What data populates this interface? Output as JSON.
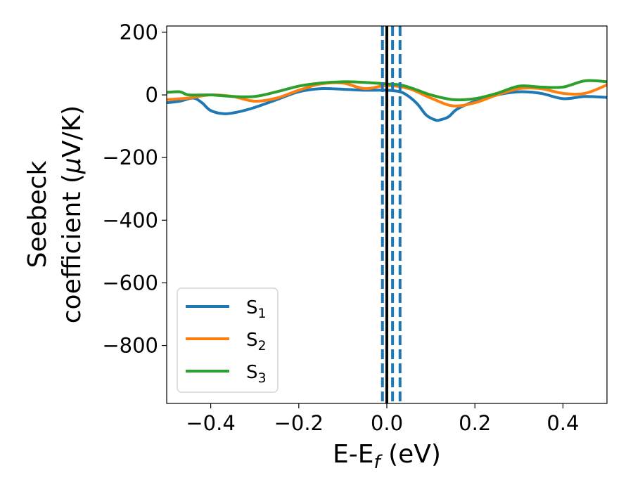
{
  "chart_data": {
    "type": "line",
    "xlabel": "E-E",
    "xlabel_sub": "f",
    "xlabel_unit": " (eV)",
    "ylabel_line1": "Seebeck",
    "ylabel_line2": "coefficient  (",
    "ylabel_mu": "μ",
    "ylabel_unit": "V/K)",
    "xlim": [
      -0.5,
      0.5
    ],
    "ylim": [
      -985,
      220
    ],
    "xticks": [
      -0.4,
      -0.2,
      0.0,
      0.2,
      0.4
    ],
    "xtick_labels": [
      "−0.4",
      "−0.2",
      "0.0",
      "0.2",
      "0.4"
    ],
    "yticks": [
      200,
      0,
      -200,
      -400,
      -600,
      -800
    ],
    "ytick_labels": [
      "200",
      "0",
      "−200",
      "−400",
      "−600",
      "−800"
    ],
    "grid": false,
    "legend_position": "lower-left",
    "vlines": [
      {
        "x": -0.01,
        "style": "dashed",
        "color": "#1f77b4"
      },
      {
        "x": 0.0,
        "style": "solid",
        "color": "#000000"
      },
      {
        "x": 0.013,
        "style": "dashed",
        "color": "#1f77b4"
      },
      {
        "x": 0.03,
        "style": "dashed",
        "color": "#1f77b4"
      }
    ],
    "series": [
      {
        "name": "S",
        "name_sub": "1",
        "color": "#1f77b4",
        "x": [
          -0.5,
          -0.47,
          -0.44,
          -0.42,
          -0.4,
          -0.37,
          -0.34,
          -0.3,
          -0.25,
          -0.2,
          -0.15,
          -0.1,
          -0.05,
          0.0,
          0.03,
          0.05,
          0.07,
          0.09,
          0.11,
          0.12,
          0.14,
          0.16,
          0.2,
          0.25,
          0.3,
          0.35,
          0.4,
          0.45,
          0.5
        ],
        "y": [
          -25,
          -20,
          -10,
          -25,
          -50,
          -60,
          -55,
          -40,
          -15,
          10,
          20,
          18,
          15,
          15,
          10,
          -5,
          -30,
          -65,
          -80,
          -80,
          -70,
          -45,
          -20,
          0,
          10,
          5,
          -12,
          -5,
          -8
        ]
      },
      {
        "name": "S",
        "name_sub": "2",
        "color": "#ff7f0e",
        "x": [
          -0.5,
          -0.45,
          -0.4,
          -0.35,
          -0.3,
          -0.25,
          -0.2,
          -0.15,
          -0.1,
          -0.05,
          0.0,
          0.05,
          0.1,
          0.15,
          0.2,
          0.25,
          0.3,
          0.35,
          0.4,
          0.45,
          0.5
        ],
        "y": [
          -15,
          -10,
          0,
          -5,
          -20,
          -10,
          15,
          35,
          38,
          20,
          30,
          20,
          -10,
          -35,
          -25,
          0,
          20,
          20,
          5,
          5,
          32
        ]
      },
      {
        "name": "S",
        "name_sub": "3",
        "color": "#2ca02c",
        "x": [
          -0.5,
          -0.47,
          -0.45,
          -0.4,
          -0.35,
          -0.3,
          -0.25,
          -0.2,
          -0.15,
          -0.1,
          -0.05,
          0.0,
          0.03,
          0.06,
          0.1,
          0.15,
          0.2,
          0.25,
          0.3,
          0.35,
          0.4,
          0.45,
          0.5
        ],
        "y": [
          8,
          10,
          0,
          0,
          -5,
          -5,
          10,
          28,
          38,
          42,
          40,
          35,
          32,
          20,
          0,
          -15,
          -12,
          5,
          28,
          25,
          25,
          45,
          42
        ]
      }
    ]
  }
}
